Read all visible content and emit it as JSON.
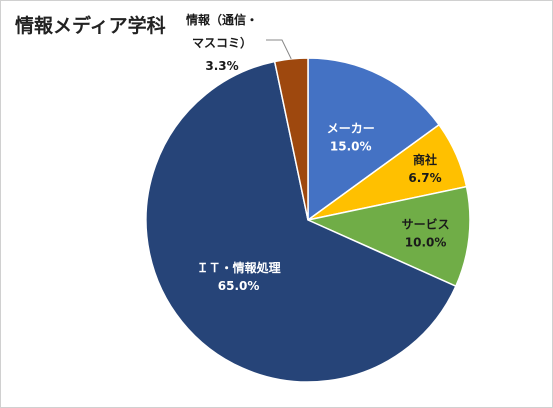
{
  "chart_data": {
    "type": "pie",
    "title": "情報メディア学科",
    "slices": [
      {
        "name": "メーカー",
        "value": 15.0,
        "value_label": "15.0%",
        "color": "#4472C4"
      },
      {
        "name": "商社",
        "value": 6.7,
        "value_label": "6.7%",
        "color": "#FFC000"
      },
      {
        "name": "サービス",
        "value": 10.0,
        "value_label": "10.0%",
        "color": "#70AD47"
      },
      {
        "name": "ＩＴ・情報処理",
        "value": 65.0,
        "value_label": "65.0%",
        "color": "#264478"
      },
      {
        "name": "情報（通信・マスコミ）",
        "name_lines": [
          "情報（通信・",
          "マスコミ）"
        ],
        "value": 3.3,
        "value_label": "3.3%",
        "color": "#9E480E"
      }
    ],
    "start_angle": "12 o'clock",
    "direction": "clockwise",
    "legend": "none"
  }
}
